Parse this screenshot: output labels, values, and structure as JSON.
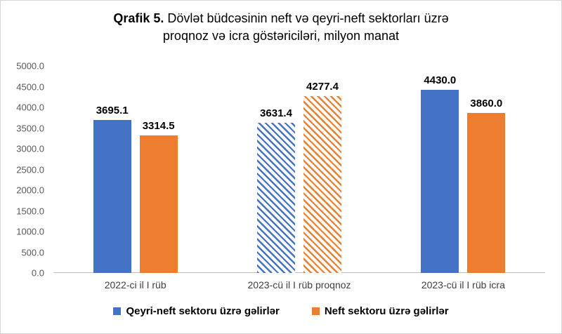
{
  "title": {
    "full": "Qrafik 5. Dövlət büdcəsinin neft və qeyri-neft sektorları üzrə proqnoz və icra göstəriciləri, milyon manat",
    "line1_bold": "Qrafik 5.",
    "line1_rest": " Dövlət büdcəsinin neft və qeyri-neft sektorları üzrə",
    "line2": "proqnoz və icra göstəriciləri, milyon manat"
  },
  "chart_data": {
    "type": "bar",
    "title": "Qrafik 5. Dövlət büdcəsinin neft və qeyri-neft sektorları üzrə proqnoz və icra göstəriciləri, milyon manat",
    "categories": [
      "2022-ci il I rüb",
      "2023-cü il I rüb proqnoz",
      "2023-cü il I rüb icra"
    ],
    "series": [
      {
        "name": "Qeyri-neft sektoru üzrə gəlirlər",
        "color": "#4472C4",
        "values": [
          3695.1,
          3631.4,
          4430.0
        ],
        "value_labels": [
          "3695.1",
          "3631.4",
          "4430.0"
        ]
      },
      {
        "name": "Neft sektoru üzrə gəlirlər",
        "color": "#ED7D31",
        "values": [
          3314.5,
          4277.4,
          3860.0
        ],
        "value_labels": [
          "3314.5",
          "4277.4",
          "3860.0"
        ]
      }
    ],
    "hatched_category_index": 1,
    "hatch_style": "diagonal-stripes (proqnoz bars)",
    "y_axis": {
      "min": 0,
      "max": 5000,
      "step": 500,
      "tick_labels": [
        "0.0",
        "500.0",
        "1000.0",
        "1500.0",
        "2000.0",
        "2500.0",
        "3000.0",
        "3500.0",
        "4000.0",
        "4500.0",
        "5000.0"
      ]
    },
    "xlabel": "",
    "ylabel": "",
    "grid": false,
    "legend_position": "bottom",
    "colors": {
      "tick_text": "#595959",
      "category_text": "#3f3f3f",
      "axis_line": "#bfbfbf",
      "data_label": "#000000"
    }
  }
}
